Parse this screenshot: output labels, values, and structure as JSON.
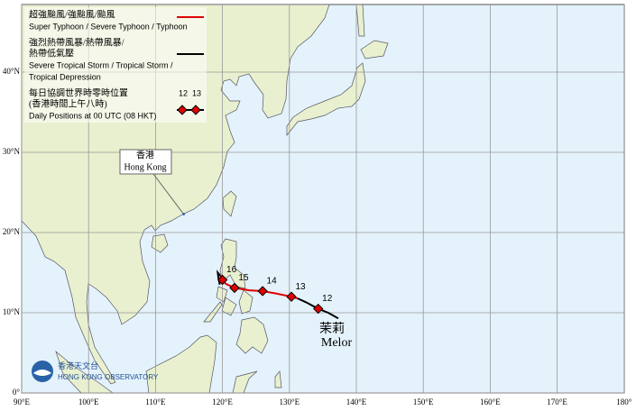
{
  "map": {
    "lon_labels": [
      {
        "value": 90,
        "label": "90°E"
      },
      {
        "value": 100,
        "label": "100°E"
      },
      {
        "value": 110,
        "label": "110°E"
      },
      {
        "value": 120,
        "label": "120°E"
      },
      {
        "value": 130,
        "label": "130°E"
      },
      {
        "value": 140,
        "label": "140°E"
      },
      {
        "value": 150,
        "label": "150°E"
      },
      {
        "value": 160,
        "label": "160°E"
      },
      {
        "value": 170,
        "label": "170°E"
      },
      {
        "value": 180,
        "label": "180°"
      }
    ],
    "lat_labels": [
      {
        "value": 0,
        "label": "0°"
      },
      {
        "value": 10,
        "label": "10°N"
      },
      {
        "value": 20,
        "label": "20°N"
      },
      {
        "value": 30,
        "label": "30°N"
      },
      {
        "value": 40,
        "label": "40°N"
      }
    ],
    "legend": {
      "typhoon_zh": "超強颱風/強颱風/颱風",
      "typhoon_en": "Super Typhoon / Severe Typhoon / Typhoon",
      "typhoon_color": "#e00000",
      "storm_zh_1": "強烈熱帶風暴/熱帶風暴/",
      "storm_zh_2": "熱帶低氣壓",
      "storm_en_1": "Severe Tropical Storm / Tropical Storm /",
      "storm_en_2": "Tropical Depression",
      "storm_color": "#000000",
      "daily_zh_1": "每日協調世界時零時位置",
      "daily_zh_2": "(香港時間上午八時)",
      "daily_en": "Daily Positions at 00 UTC (08 HKT)",
      "sample_labels": [
        "12",
        "13"
      ]
    },
    "place": {
      "name_zh": "香港",
      "name_en": "Hong Kong",
      "lon": 114.2,
      "lat": 22.3
    },
    "storm": {
      "name_zh": "茉莉",
      "name_en": "Melor",
      "track": [
        {
          "color": "#000000",
          "points": [
            [
              137.3,
              9.3
            ],
            [
              135.8,
              10.0
            ],
            [
              134.3,
              10.5
            ],
            [
              132.5,
              11.3
            ],
            [
              131.2,
              11.8
            ]
          ]
        },
        {
          "color": "#e00000",
          "points": [
            [
              131.2,
              11.8
            ],
            [
              130.3,
              12.0
            ],
            [
              128.0,
              12.4
            ],
            [
              126.0,
              12.7
            ],
            [
              124.0,
              12.8
            ],
            [
              121.8,
              13.1
            ],
            [
              120.5,
              13.6
            ],
            [
              120.0,
              14.1
            ],
            [
              119.7,
              14.6
            ]
          ]
        },
        {
          "color": "#000000",
          "points": [
            [
              119.7,
              14.6
            ],
            [
              119.3,
              15.0
            ],
            [
              119.4,
              14.3
            ],
            [
              119.6,
              13.5
            ]
          ]
        }
      ],
      "positions": [
        {
          "label": "12",
          "lon": 134.3,
          "lat": 10.5
        },
        {
          "label": "13",
          "lon": 130.3,
          "lat": 12.0
        },
        {
          "label": "14",
          "lon": 126.0,
          "lat": 12.7
        },
        {
          "label": "15",
          "lon": 121.8,
          "lat": 13.1
        },
        {
          "label": "16",
          "lon": 120.0,
          "lat": 14.1
        }
      ]
    },
    "logo": {
      "zh": "香港天文台",
      "en": "HONG KONG OBSERVATORY"
    }
  }
}
